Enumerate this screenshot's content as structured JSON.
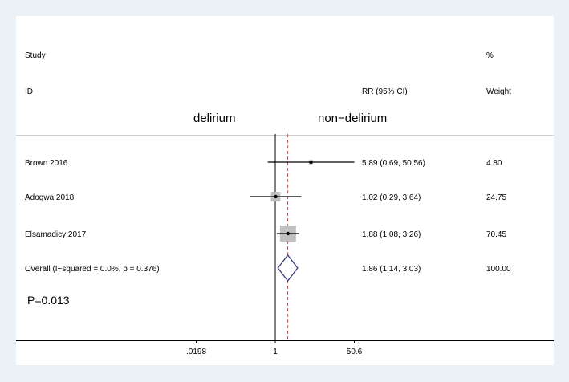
{
  "header": {
    "col1_top": "Study",
    "col1_bottom": "ID",
    "col2": "RR (95% CI)",
    "col3_top": "%",
    "col3_bottom": "Weight"
  },
  "direction_labels": {
    "left": "delirium",
    "right": "non−delirium"
  },
  "annotation": "P=0.013",
  "chart_data": {
    "type": "forest",
    "measure": "RR",
    "scale": "log",
    "x_ticks": [
      0.0198,
      1,
      50.6
    ],
    "x_tick_labels": [
      ".0198",
      "1",
      "50.6"
    ],
    "null_line": 1,
    "overall_line": 1.86,
    "studies": [
      {
        "id": "Brown 2016",
        "rr": 5.89,
        "lo": 0.69,
        "hi": 50.56,
        "weight": 4.8,
        "ci_text": "5.89 (0.69, 50.56)",
        "weight_text": "4.80"
      },
      {
        "id": "Adogwa 2018",
        "rr": 1.02,
        "lo": 0.29,
        "hi": 3.64,
        "weight": 24.75,
        "ci_text": "1.02 (0.29, 3.64)",
        "weight_text": "24.75"
      },
      {
        "id": "Elsamadicy 2017",
        "rr": 1.88,
        "lo": 1.08,
        "hi": 3.26,
        "weight": 70.45,
        "ci_text": "1.88 (1.08, 3.26)",
        "weight_text": "70.45"
      }
    ],
    "overall": {
      "id": "Overall  (I−squared = 0.0%, p = 0.376)",
      "rr": 1.86,
      "lo": 1.14,
      "hi": 3.03,
      "ci_text": "1.86 (1.14, 3.03)",
      "weight_text": "100.00"
    },
    "colors": {
      "box": "#c0c0c0",
      "ci_line": "#000000",
      "diamond": "#3a3a7a",
      "overall_line": "#b05a5a",
      "null_line": "#000000"
    }
  }
}
